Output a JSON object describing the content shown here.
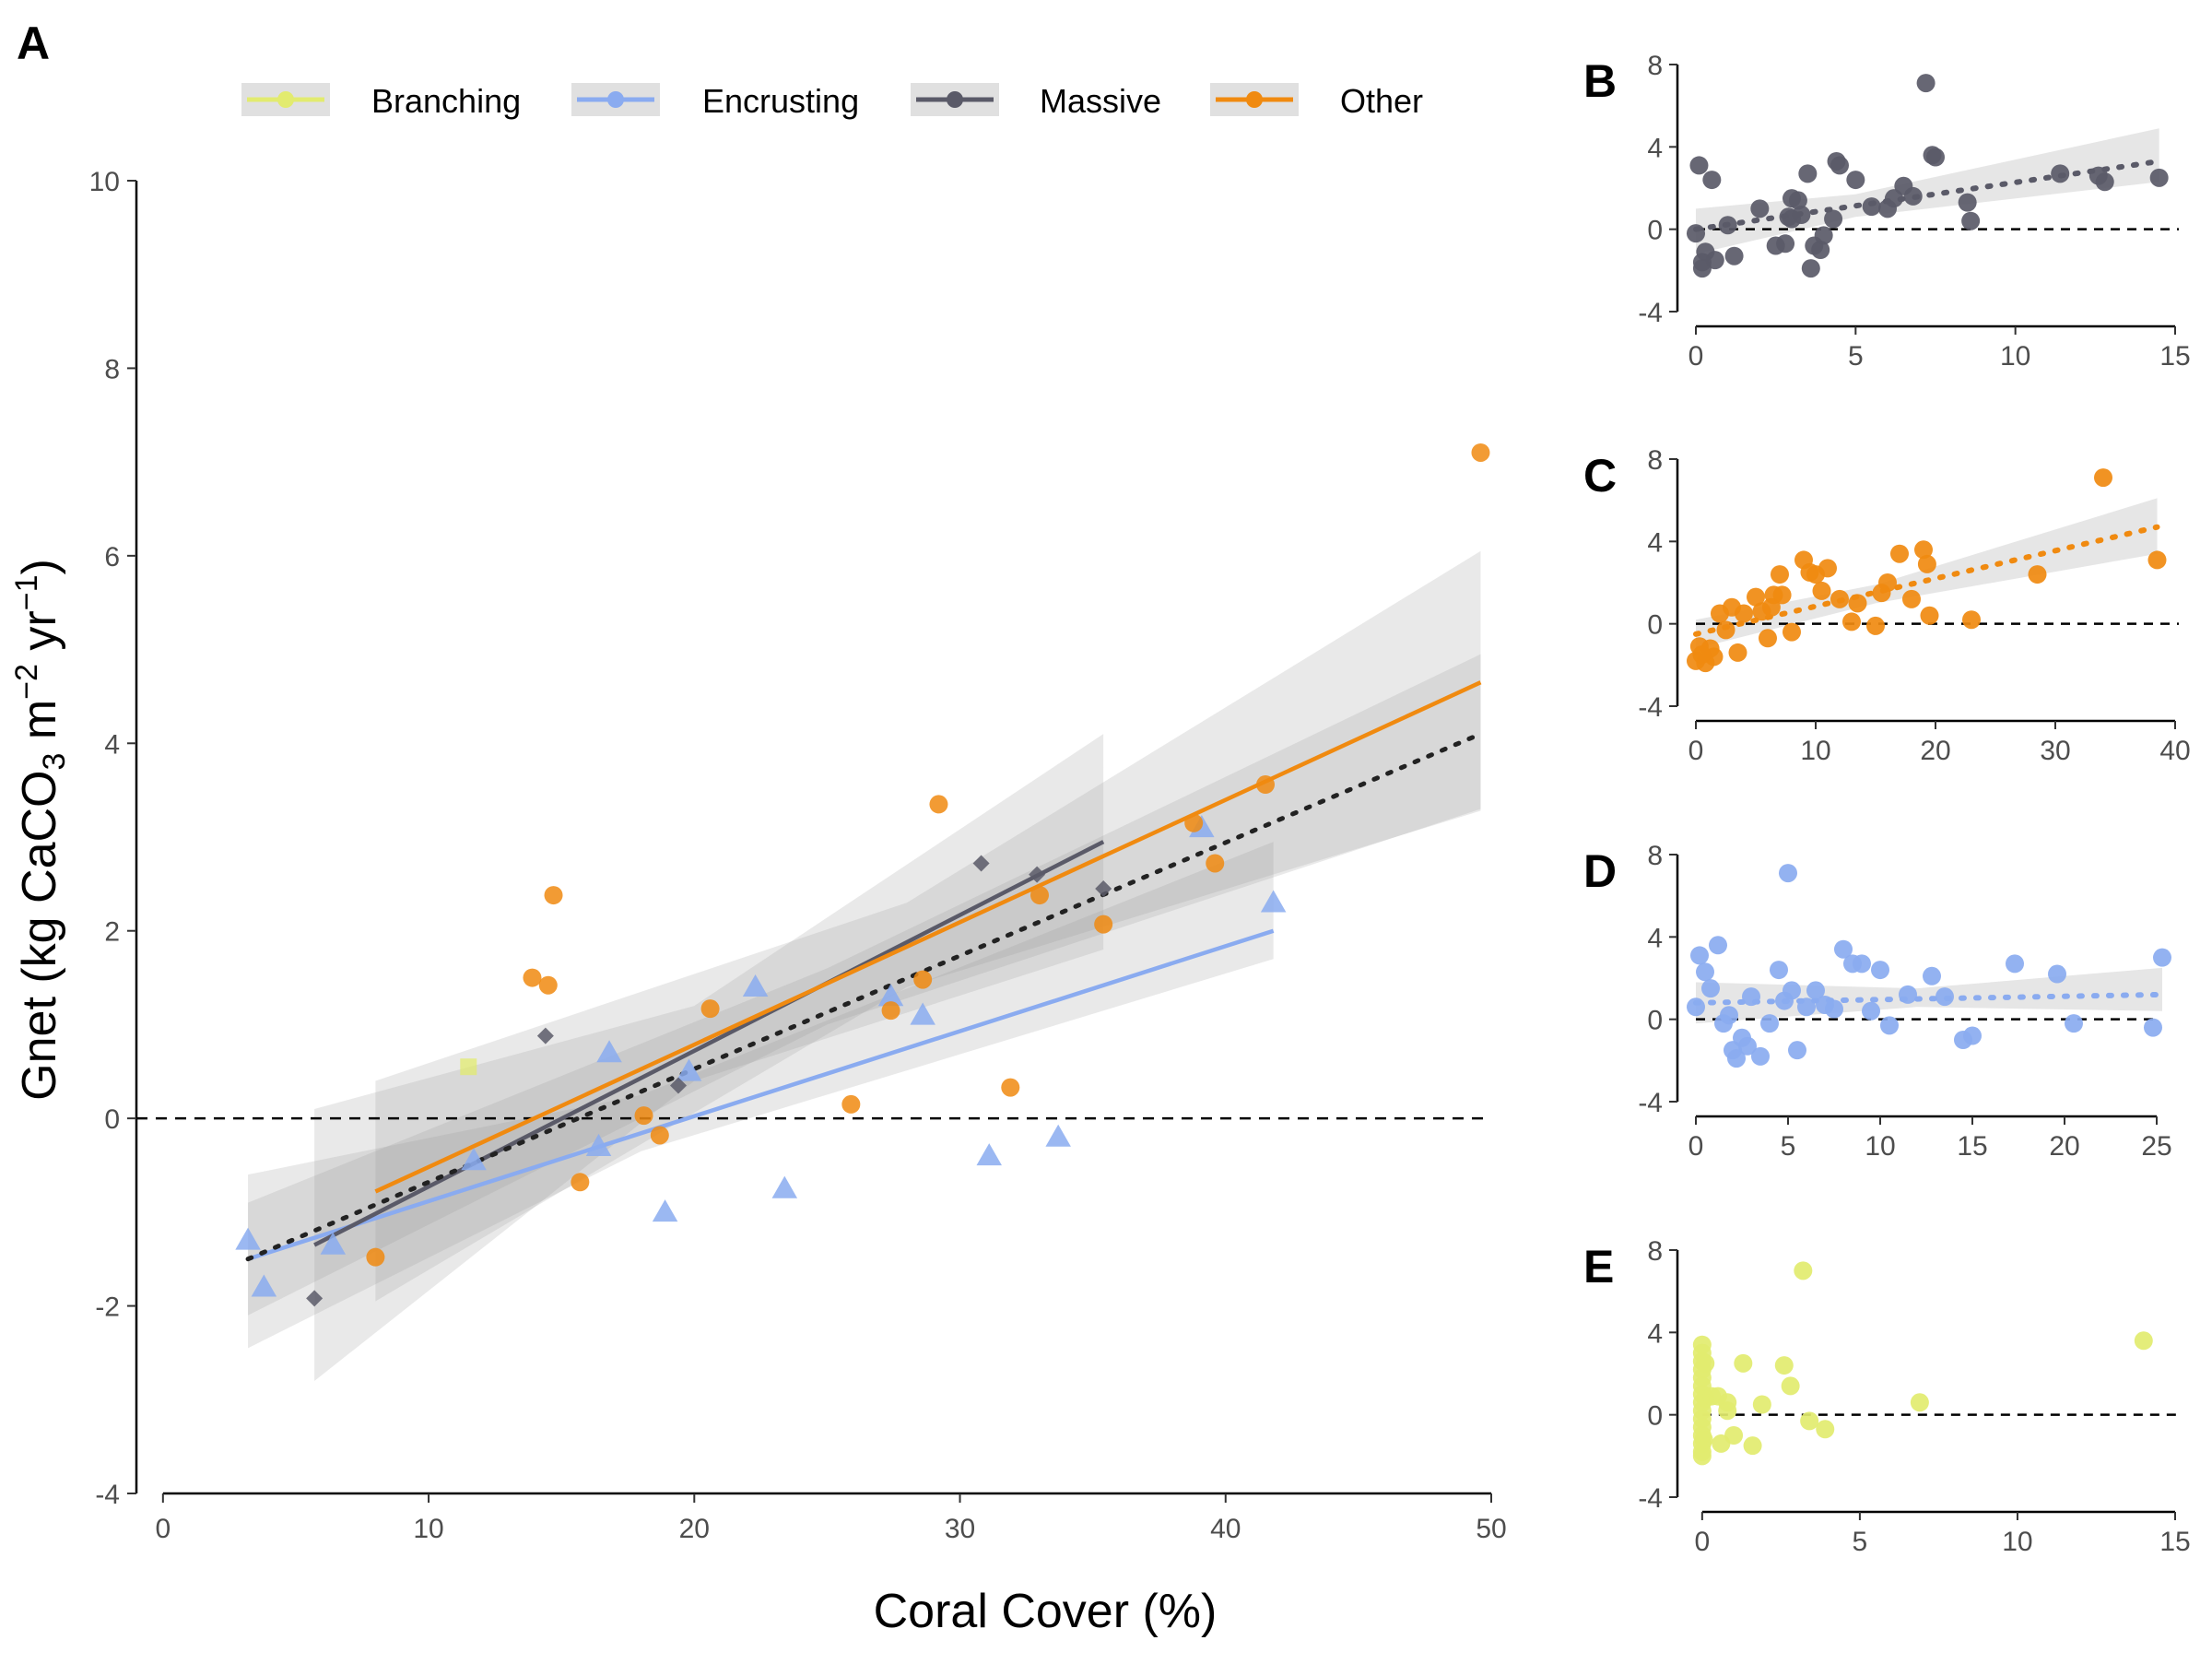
{
  "figure": {
    "panels": {
      "A": "A",
      "B": "B",
      "C": "C",
      "D": "D",
      "E": "E"
    },
    "colors": {
      "Branching": "#e2eb6f",
      "Encrusting": "#8aabf0",
      "Massive": "#5a5a68",
      "Other": "#f08a10",
      "band": "#9a9a9a",
      "overall": "#222222"
    }
  },
  "chart_data": [
    {
      "panel": "A",
      "type": "scatter",
      "title": "",
      "xlabel": "Coral Cover (%)",
      "ylabel": "Gnet (kg CaCO3 m-2 yr-1)",
      "xlim": [
        -1,
        50
      ],
      "ylim": [
        -4,
        10
      ],
      "xticks": [
        0,
        10,
        20,
        30,
        40,
        50
      ],
      "yticks": [
        -4,
        -2,
        0,
        2,
        4,
        6,
        8,
        10
      ],
      "grid": false,
      "legend_position": "top",
      "reference_line_y": 0,
      "legend": [
        {
          "name": "Branching",
          "label": "Branching"
        },
        {
          "name": "Encrusting",
          "label": "Encrusting"
        },
        {
          "name": "Massive",
          "label": "Massive"
        },
        {
          "name": "Other",
          "label": "Other"
        }
      ],
      "series": [
        {
          "name": "Branching",
          "marker": "square",
          "x": [
            11.5
          ],
          "y": [
            0.55
          ]
        },
        {
          "name": "Encrusting",
          "marker": "triangle",
          "x": [
            3.2,
            3.8,
            6.4,
            11.7,
            16.4,
            16.8,
            18.9,
            19.8,
            22.3,
            23.4,
            27.4,
            28.6,
            31.1,
            33.7,
            39.1,
            41.8
          ],
          "y": [
            -1.3,
            -1.8,
            -1.35,
            -0.45,
            -0.3,
            0.7,
            -1.0,
            0.5,
            1.4,
            -0.75,
            1.3,
            1.1,
            -0.4,
            -0.2,
            3.1,
            2.3
          ]
        },
        {
          "name": "Massive",
          "marker": "diamond",
          "x": [
            5.7,
            14.4,
            19.4,
            30.8,
            32.9,
            35.4
          ],
          "y": [
            -1.92,
            0.88,
            0.35,
            2.72,
            2.6,
            2.45
          ]
        },
        {
          "name": "Other",
          "marker": "circle",
          "x": [
            8.0,
            13.9,
            14.5,
            14.7,
            15.7,
            18.1,
            18.7,
            20.6,
            25.9,
            27.4,
            28.6,
            29.2,
            31.9,
            33.0,
            35.4,
            38.8,
            39.6,
            41.5,
            49.6
          ],
          "y": [
            -1.48,
            1.5,
            1.42,
            2.38,
            -0.68,
            0.03,
            -0.18,
            1.17,
            0.15,
            1.15,
            1.48,
            3.35,
            0.33,
            2.38,
            2.07,
            3.15,
            2.72,
            3.56,
            7.1
          ]
        }
      ],
      "fits": [
        {
          "name": "Encrusting",
          "style": "solid",
          "x": [
            3.2,
            41.8
          ],
          "y": [
            -1.5,
            2.0
          ],
          "ci_low": [
            -2.45,
            1.7
          ],
          "ci_high": [
            -0.6,
            2.95
          ],
          "ci_mid_x": 18,
          "ci_mid_low": -0.35,
          "ci_mid_high": 0.25
        },
        {
          "name": "Massive",
          "style": "solid",
          "x": [
            5.7,
            35.4
          ],
          "y": [
            -1.35,
            2.95
          ],
          "ci_low": [
            -2.8,
            1.8
          ],
          "ci_high": [
            0.1,
            4.1
          ],
          "ci_mid_x": 20,
          "ci_mid_low": 0.4,
          "ci_mid_high": 1.2
        },
        {
          "name": "Other",
          "style": "solid",
          "x": [
            8.0,
            49.6
          ],
          "y": [
            -0.78,
            4.65
          ],
          "ci_low": [
            -1.95,
            3.28
          ],
          "ci_high": [
            0.4,
            6.05
          ],
          "ci_mid_x": 28,
          "ci_mid_low": 1.4,
          "ci_mid_high": 2.3
        },
        {
          "name": "overall",
          "style": "dotted",
          "x": [
            3.2,
            49.6
          ],
          "y": [
            -1.5,
            4.1
          ],
          "ci_low": [
            -2.1,
            3.3
          ],
          "ci_high": [
            -0.9,
            4.95
          ],
          "ci_mid_x": 25,
          "ci_mid_low": 1.0,
          "ci_mid_high": 1.6
        }
      ]
    },
    {
      "panel": "B",
      "type": "scatter",
      "series_name": "Massive",
      "xlim": [
        0,
        15
      ],
      "ylim": [
        -4,
        8
      ],
      "xticks": [
        0,
        5,
        10,
        15
      ],
      "yticks": [
        -4,
        0,
        4,
        8
      ],
      "reference_line_y": 0,
      "x": [
        0.1,
        0.2,
        0.3,
        0.0,
        0.5,
        0.6,
        1.0,
        1.2,
        2.0,
        2.5,
        2.8,
        3.0,
        3.2,
        3.3,
        3.5,
        3.6,
        3.7,
        3.9,
        4.0,
        4.3,
        4.4,
        4.5,
        5.0,
        5.5,
        6.0,
        6.2,
        6.5,
        6.8,
        7.2,
        7.4,
        7.5,
        8.5,
        8.6,
        11.4,
        12.6,
        12.8,
        14.5,
        0.2,
        2.9,
        3.0
      ],
      "y": [
        3.1,
        -1.6,
        -1.1,
        -0.2,
        2.4,
        -1.5,
        0.2,
        -1.3,
        1.0,
        -0.8,
        -0.7,
        1.5,
        1.4,
        0.7,
        2.7,
        -1.9,
        -0.8,
        -1.0,
        -0.3,
        0.5,
        3.3,
        3.1,
        2.4,
        1.1,
        1.0,
        1.5,
        2.1,
        1.6,
        7.1,
        3.6,
        3.5,
        1.3,
        0.4,
        2.7,
        2.6,
        2.3,
        2.5,
        -1.9,
        0.6,
        0.5
      ],
      "fit": {
        "x": [
          0,
          14.5
        ],
        "y": [
          0.0,
          3.3
        ],
        "ci_low": [
          -1.2,
          2.3
        ],
        "ci_high": [
          1.0,
          4.9
        ],
        "ci_mid_x": 5,
        "ci_mid_low": 0.6,
        "ci_mid_high": 1.7
      }
    },
    {
      "panel": "C",
      "type": "scatter",
      "series_name": "Other",
      "xlim": [
        0,
        40
      ],
      "ylim": [
        -4,
        8
      ],
      "xticks": [
        0,
        10,
        20,
        30,
        40
      ],
      "yticks": [
        -4,
        0,
        4,
        8
      ],
      "reference_line_y": 0,
      "x": [
        0.0,
        0.3,
        0.5,
        0.8,
        1.2,
        1.5,
        2.0,
        2.5,
        3.0,
        3.5,
        4.0,
        5.0,
        5.5,
        6.0,
        6.3,
        6.5,
        7.0,
        7.2,
        8.0,
        9.0,
        9.5,
        10.0,
        10.5,
        11.0,
        12.0,
        13.0,
        13.5,
        15.0,
        15.5,
        16.0,
        17.0,
        18.0,
        19.0,
        19.3,
        19.5,
        23.0,
        28.5,
        34.0,
        38.5
      ],
      "y": [
        -1.8,
        -1.1,
        -1.5,
        -1.9,
        -1.2,
        -1.6,
        0.5,
        -0.3,
        0.8,
        -1.4,
        0.5,
        1.3,
        0.6,
        -0.7,
        0.8,
        1.4,
        2.4,
        1.4,
        -0.4,
        3.1,
        2.5,
        2.4,
        1.6,
        2.7,
        1.2,
        0.1,
        1.0,
        -0.1,
        1.5,
        2.0,
        3.4,
        1.2,
        3.6,
        2.9,
        0.4,
        0.2,
        2.4,
        7.1,
        3.1
      ],
      "fit": {
        "x": [
          0,
          38.5
        ],
        "y": [
          -0.5,
          4.7
        ],
        "ci_low": [
          -1.2,
          3.4
        ],
        "ci_high": [
          0.2,
          6.1
        ],
        "ci_mid_x": 15,
        "ci_mid_low": 1.0,
        "ci_mid_high": 1.9
      }
    },
    {
      "panel": "D",
      "type": "scatter",
      "series_name": "Encrusting",
      "xlim": [
        0,
        26
      ],
      "ylim": [
        -4,
        8
      ],
      "xticks": [
        0,
        5,
        10,
        15,
        20,
        25
      ],
      "yticks": [
        -4,
        0,
        4,
        8
      ],
      "reference_line_y": 0,
      "x": [
        0.0,
        0.2,
        0.5,
        0.8,
        1.2,
        1.5,
        1.8,
        2.0,
        2.2,
        2.5,
        2.8,
        3.0,
        3.5,
        4.0,
        4.5,
        4.8,
        5.0,
        5.2,
        5.5,
        6.0,
        6.5,
        7.0,
        7.5,
        8.0,
        8.5,
        9.0,
        9.5,
        10.0,
        10.5,
        11.5,
        12.8,
        13.5,
        14.5,
        15.0,
        17.3,
        19.6,
        20.5,
        24.8,
        25.3
      ],
      "y": [
        0.6,
        3.1,
        2.3,
        1.5,
        3.6,
        -0.2,
        0.2,
        -1.5,
        -1.9,
        -0.9,
        -1.3,
        1.1,
        -1.8,
        -0.2,
        2.4,
        0.9,
        7.1,
        1.4,
        -1.5,
        0.6,
        1.4,
        0.7,
        0.5,
        3.4,
        2.7,
        2.7,
        0.4,
        2.4,
        -0.3,
        1.2,
        2.1,
        1.1,
        -1.0,
        -0.8,
        2.7,
        2.2,
        -0.2,
        -0.4,
        3.0
      ],
      "fit": {
        "x": [
          0,
          25.3
        ],
        "y": [
          0.8,
          1.2
        ],
        "ci_low": [
          -0.2,
          0.4
        ],
        "ci_high": [
          1.8,
          2.5
        ],
        "ci_mid_x": 12,
        "ci_mid_low": 0.6,
        "ci_mid_high": 1.5
      }
    },
    {
      "panel": "E",
      "type": "scatter",
      "series_name": "Branching",
      "xlim": [
        -0.2,
        15
      ],
      "ylim": [
        -4,
        8
      ],
      "xticks": [
        0,
        5,
        10,
        15
      ],
      "yticks": [
        -4,
        0,
        4,
        8
      ],
      "reference_line_y": 0,
      "x": [
        0.0,
        0.0,
        0.0,
        0.0,
        0.0,
        0.0,
        0.0,
        0.0,
        0.0,
        0.0,
        0.0,
        0.0,
        0.0,
        0.0,
        0.0,
        0.05,
        0.1,
        0.1,
        0.3,
        0.5,
        0.6,
        0.8,
        0.8,
        1.0,
        1.3,
        1.6,
        1.9,
        2.6,
        2.8,
        3.2,
        3.4,
        3.9,
        6.9,
        14.0
      ],
      "y": [
        3.4,
        3.0,
        2.6,
        2.2,
        1.8,
        1.4,
        1.0,
        0.6,
        0.2,
        -0.2,
        -0.6,
        -1.0,
        -1.4,
        -1.8,
        -2.0,
        -1.2,
        0.8,
        2.5,
        0.9,
        0.9,
        -1.4,
        0.6,
        0.2,
        -1.0,
        2.5,
        -1.5,
        0.5,
        2.4,
        1.4,
        7.0,
        -0.3,
        -0.7,
        0.6,
        3.6
      ]
    }
  ]
}
